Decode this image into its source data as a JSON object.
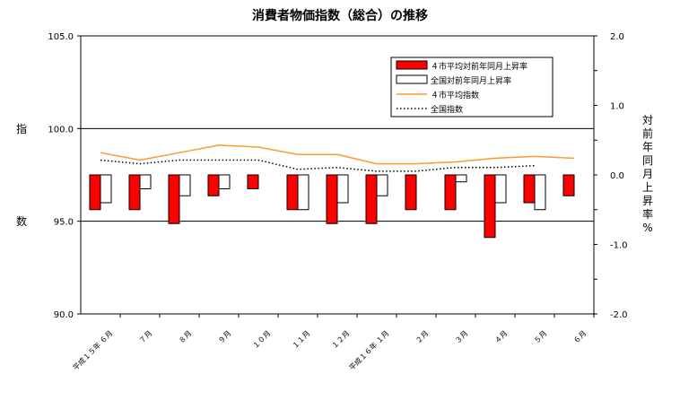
{
  "chart_data": {
    "type": "bar+line",
    "title": "消費者物価指数（総合）の推移",
    "left_axis": {
      "label": "指数",
      "range": [
        90.0,
        105.0
      ],
      "ticks": [
        "105.0",
        "100.0",
        "95.0",
        "90.0"
      ]
    },
    "right_axis": {
      "label": "対前年同月上昇率%",
      "range": [
        -2.0,
        2.0
      ],
      "ticks": [
        "2.0",
        "1.0",
        "0.0",
        "-1.0",
        "-2.0"
      ]
    },
    "categories": [
      "平成１５年 ６月",
      "７月",
      "８月",
      "９月",
      "１０月",
      "１１月",
      "１２月",
      "平成１６年 １月",
      "２月",
      "３月",
      "４月",
      "５月",
      "６月"
    ],
    "legend": {
      "position": "top-right",
      "entries": [
        "４市平均対前年同月上昇率",
        "全国対前年同月上昇率",
        "４市平均指数",
        "全国指数"
      ]
    },
    "series": [
      {
        "name": "４市平均対前年同月上昇率",
        "kind": "bar",
        "axis": "right",
        "color": "#ff0000",
        "values": [
          -0.5,
          -0.5,
          -0.7,
          -0.3,
          -0.2,
          -0.5,
          -0.7,
          -0.7,
          -0.5,
          -0.5,
          -0.9,
          -0.4,
          -0.3
        ]
      },
      {
        "name": "全国対前年同月上昇率",
        "kind": "bar",
        "axis": "right",
        "color": "#ffffff",
        "values": [
          -0.4,
          -0.2,
          -0.3,
          -0.2,
          0.0,
          -0.5,
          -0.4,
          -0.3,
          0.0,
          -0.1,
          -0.4,
          -0.5,
          null
        ]
      },
      {
        "name": "４市平均指数",
        "kind": "line",
        "axis": "left",
        "color": "#ff9933",
        "values": [
          98.7,
          98.3,
          98.7,
          99.1,
          99.0,
          98.6,
          98.6,
          98.1,
          98.1,
          98.2,
          98.4,
          98.5,
          98.4
        ]
      },
      {
        "name": "全国指数",
        "kind": "line-dotted",
        "axis": "left",
        "color": "#000000",
        "values": [
          98.3,
          98.1,
          98.3,
          98.3,
          98.3,
          97.8,
          97.9,
          97.7,
          97.7,
          97.9,
          97.9,
          98.0,
          null
        ]
      }
    ]
  }
}
